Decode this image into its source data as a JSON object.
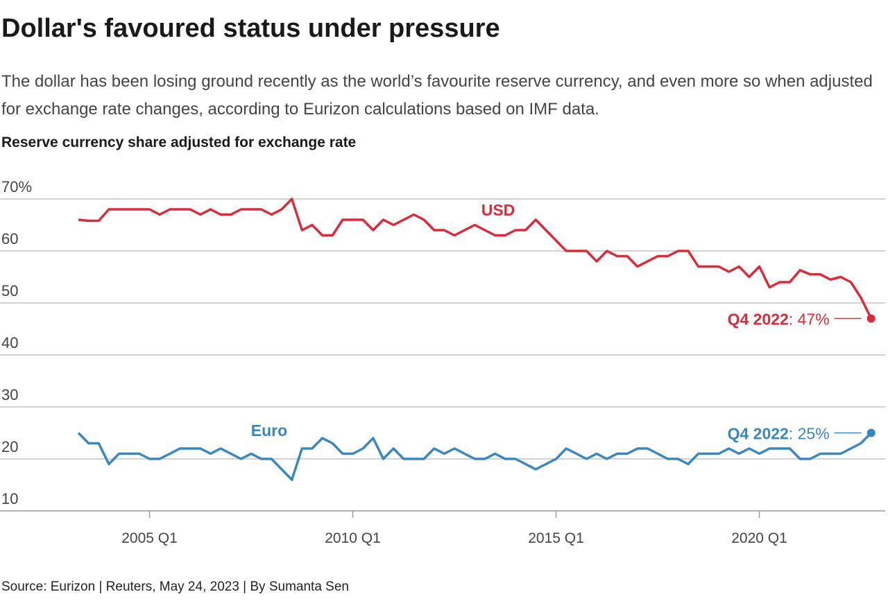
{
  "chart_data": {
    "type": "line",
    "title": "Dollar's favoured status under pressure",
    "subtitle": "The dollar has been losing ground recently as the world’s favourite reserve currency, and even more so when adjusted for exchange rate changes, according to Eurizon calculations based on IMF data.",
    "y_label": "Reserve currency share adjusted for exchange rate",
    "source": "Source: Eurizon | Reuters, May 24, 2023 | By Sumanta Sen",
    "categories": [
      null,
      null,
      null,
      null,
      null,
      null,
      null,
      "2005 Q1",
      null,
      null,
      null,
      null,
      null,
      null,
      null,
      null,
      null,
      null,
      null,
      null,
      null,
      null,
      null,
      null,
      null,
      null,
      null,
      "2010 Q1",
      null,
      null,
      null,
      null,
      null,
      null,
      null,
      null,
      null,
      null,
      null,
      null,
      null,
      null,
      null,
      null,
      null,
      null,
      null,
      "2015 Q1",
      null,
      null,
      null,
      null,
      null,
      null,
      null,
      null,
      null,
      null,
      null,
      null,
      null,
      null,
      null,
      null,
      null,
      null,
      null,
      "2020 Q1",
      null,
      null,
      null,
      null,
      null,
      null,
      null,
      null,
      null,
      null,
      null
    ],
    "series": [
      {
        "name": "USD",
        "color": "#d92b3a",
        "end_label": "Q4 2022",
        "values": [
          66,
          65.8,
          65.8,
          68,
          68,
          68,
          68,
          68,
          67,
          68,
          68,
          68,
          67,
          68,
          67,
          67,
          68,
          68,
          68,
          67,
          68,
          70,
          64,
          65,
          63,
          63,
          66,
          66,
          66,
          64,
          66,
          65,
          66,
          67,
          66,
          64,
          64,
          63,
          64,
          65,
          64,
          63,
          63,
          64,
          64,
          66,
          64,
          62,
          60,
          60,
          60,
          58,
          60,
          59,
          59,
          57,
          58,
          59,
          59,
          60,
          60,
          57,
          57,
          57,
          56,
          57,
          55,
          57,
          53,
          54,
          54,
          56.3,
          55.5,
          55.5,
          54.5,
          55,
          54,
          51,
          47
        ],
        "value_labels": [
          null,
          null,
          null,
          null,
          null,
          null,
          null,
          null,
          null,
          null,
          null,
          null,
          null,
          null,
          null,
          null,
          null,
          null,
          null,
          null,
          null,
          null,
          null,
          null,
          null,
          null,
          null,
          null,
          null,
          null,
          null,
          null,
          null,
          null,
          null,
          null,
          null,
          null,
          null,
          null,
          null,
          null,
          null,
          null,
          null,
          null,
          null,
          null,
          null,
          null,
          null,
          null,
          null,
          null,
          null,
          null,
          null,
          null,
          null,
          null,
          null,
          null,
          null,
          null,
          null,
          null,
          null,
          null,
          null,
          null,
          null,
          null,
          null,
          null,
          null,
          null,
          null,
          null,
          ": 47%"
        ]
      },
      {
        "name": "Euro",
        "color": "#3a87c0",
        "end_label": "Q4 2022",
        "values": [
          25,
          23,
          23,
          19,
          21,
          21,
          21,
          20,
          20,
          21,
          22,
          22,
          22,
          21,
          22,
          21,
          20,
          21,
          20,
          20,
          18,
          16,
          22,
          22,
          24,
          23,
          21,
          21,
          22,
          24,
          20,
          22,
          20,
          20,
          20,
          22,
          21,
          22,
          21,
          20,
          20,
          21,
          20,
          20,
          19,
          18,
          19,
          20,
          22,
          21,
          20,
          21,
          20,
          21,
          21,
          22,
          22,
          21,
          20,
          20,
          19,
          21,
          21,
          21,
          22,
          21,
          22,
          21,
          22,
          22,
          22,
          20,
          20,
          21,
          21,
          21,
          22,
          23,
          25
        ],
        "value_labels": [
          null,
          null,
          null,
          null,
          null,
          null,
          null,
          null,
          null,
          null,
          null,
          null,
          null,
          null,
          null,
          null,
          null,
          null,
          null,
          null,
          null,
          null,
          null,
          null,
          null,
          null,
          null,
          null,
          null,
          null,
          null,
          null,
          null,
          null,
          null,
          null,
          null,
          null,
          null,
          null,
          null,
          null,
          null,
          null,
          null,
          null,
          null,
          null,
          null,
          null,
          null,
          null,
          null,
          null,
          null,
          null,
          null,
          null,
          null,
          null,
          null,
          null,
          null,
          null,
          null,
          null,
          null,
          null,
          null,
          null,
          null,
          null,
          null,
          null,
          null,
          null,
          null,
          null,
          ": 25%"
        ]
      }
    ],
    "ylim": [
      10,
      70
    ],
    "yticks": [
      {
        "value": 70,
        "label": "70%"
      },
      60,
      50,
      40,
      30,
      20,
      10
    ],
    "grid": true
  }
}
